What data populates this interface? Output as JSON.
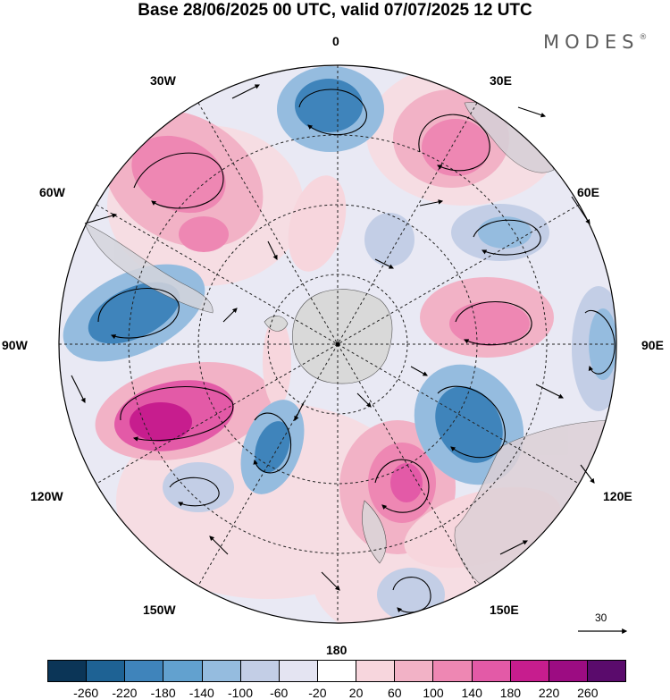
{
  "header": {
    "title": "Base 28/06/2025 00 UTC, valid 07/07/2025 12 UTC",
    "brand": "MODES",
    "brand_mark": "®"
  },
  "map": {
    "projection": "south-polar-stereographic",
    "longitude_labels": {
      "top": "0",
      "top_right": "30E",
      "right_upper": "60E",
      "right": "90E",
      "right_lower": "120E",
      "bottom_right": "150E",
      "bottom": "180",
      "bottom_left": "150W",
      "left_lower": "120W",
      "left": "90W",
      "left_upper": "60W",
      "top_left": "30W"
    },
    "reference_vector_label": "30",
    "field_colors": {
      "negative_strong": "#3f7fba",
      "negative_medium": "#74a8d2",
      "negative_weak": "#c3cee6",
      "neutral": "#ffffff",
      "positive_weak": "#f5d6dd",
      "positive_medium": "#ef9fbd",
      "positive_strong": "#c71d8e",
      "land": "#d9d9d9"
    }
  },
  "colorbar": {
    "colors": [
      "#0b3557",
      "#1e6294",
      "#3f84bb",
      "#62a1cf",
      "#95bcdf",
      "#c3cee6",
      "#e4e4f2",
      "#ffffff",
      "#f7d6dd",
      "#f2b2c6",
      "#ee87b3",
      "#e35aa7",
      "#c71d8e",
      "#9c0c82",
      "#5a0b6c"
    ],
    "tick_labels": [
      "-260",
      "-220",
      "-180",
      "-140",
      "-100",
      "-60",
      "-20",
      "20",
      "60",
      "100",
      "140",
      "180",
      "220",
      "260"
    ]
  }
}
